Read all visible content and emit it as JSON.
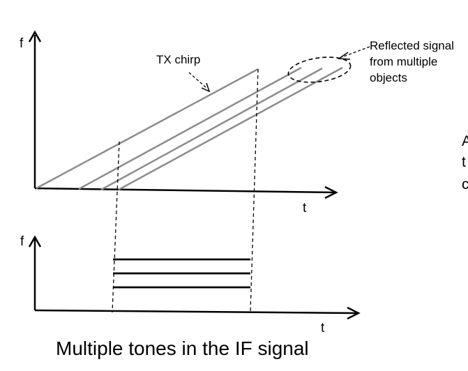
{
  "upper_plot": {
    "y_axis_label": "f",
    "x_axis_label": "t",
    "tx_chirp_label": "TX chirp",
    "reflected_label": [
      "Reflected signal",
      "from multiple",
      "objects"
    ]
  },
  "lower_plot": {
    "y_axis_label": "f",
    "x_axis_label": "t",
    "if_tone_count": 3
  },
  "caption": "Multiple tones in the IF signal",
  "right_edge_text": [
    "A",
    "t",
    "c"
  ],
  "colors": {
    "tx_chirp": "#8c8c8c",
    "reflected_chirps": "#8c8c8c",
    "axes": "#000000",
    "if_tones": "#000000"
  }
}
